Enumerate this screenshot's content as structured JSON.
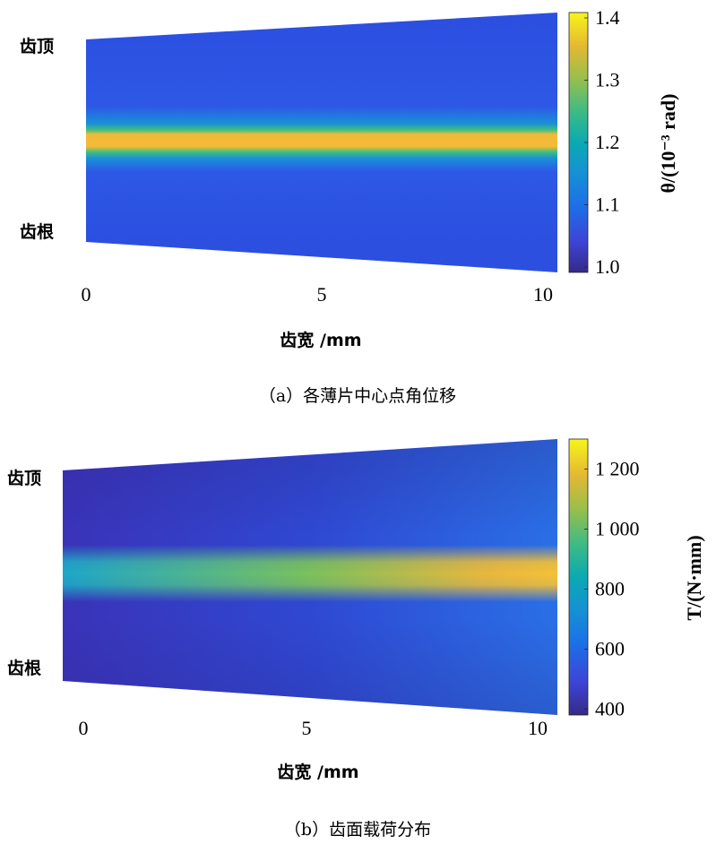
{
  "chart_data": [
    {
      "type": "heatmap",
      "caption": "（a）各薄片中心点角位移",
      "xlabel": "齿宽 /mm",
      "y_top_label": "齿顶",
      "y_bottom_label": "齿根",
      "xticks": [
        "0",
        "5",
        "10"
      ],
      "xlim": [
        0,
        10
      ],
      "colorbar": {
        "label": "θ/(10⁻³ rad)",
        "range": [
          1.0,
          1.4
        ],
        "ticks": [
          "1.0",
          "1.1",
          "1.2",
          "1.3",
          "1.4"
        ],
        "tick_values": [
          1.0,
          1.1,
          1.2,
          1.3,
          1.4
        ]
      },
      "colormap": "parula",
      "description_values": {
        "background": 1.04,
        "band_peak": 1.32,
        "band_position": "middle (pitch line)"
      }
    },
    {
      "type": "heatmap",
      "caption": "（b）齿面载荷分布",
      "xlabel": "齿宽 /mm",
      "y_top_label": "齿顶",
      "y_bottom_label": "齿根",
      "xticks": [
        "0",
        "5",
        "10"
      ],
      "xlim": [
        0,
        10
      ],
      "colorbar": {
        "label": "T/(N·mm)",
        "range": [
          380,
          1300
        ],
        "ticks": [
          "400",
          "600",
          "800",
          "1 000",
          "1 200"
        ],
        "tick_values": [
          400,
          600,
          800,
          1000,
          1200
        ]
      },
      "colormap": "parula",
      "description_values": {
        "background_left": 420,
        "background_right": 620,
        "band_peak_left": 880,
        "band_peak_right": 1200,
        "band_position": "middle (pitch line)"
      }
    }
  ]
}
